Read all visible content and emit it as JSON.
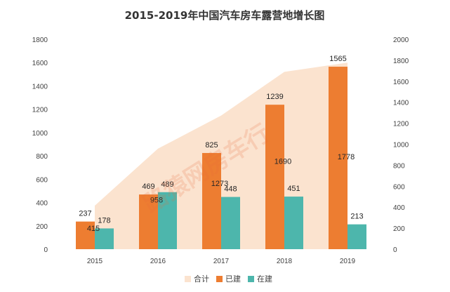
{
  "chart_data": {
    "type": "bar",
    "title": "2015-2019年中国汽车房车露营地增长图",
    "categories": [
      "2015",
      "2016",
      "2017",
      "2018",
      "2019"
    ],
    "series": [
      {
        "name": "合计",
        "kind": "area",
        "axis": "right",
        "values": [
          415,
          958,
          1273,
          1690,
          1778
        ],
        "color": "#fbe3cf"
      },
      {
        "name": "已建",
        "kind": "bar",
        "axis": "left",
        "values": [
          237,
          469,
          825,
          1239,
          1565
        ],
        "color": "#ed7d31"
      },
      {
        "name": "在建",
        "kind": "bar",
        "axis": "left",
        "values": [
          178,
          489,
          448,
          451,
          213
        ],
        "color": "#4db6ac"
      }
    ],
    "y_left": {
      "ticks": [
        0,
        200,
        400,
        600,
        800,
        1000,
        1200,
        1400,
        1600,
        1800
      ],
      "range": [
        0,
        1800
      ]
    },
    "y_right": {
      "ticks": [
        0,
        200,
        400,
        600,
        800,
        1000,
        1200,
        1400,
        1600,
        1800,
        2000
      ],
      "range": [
        0,
        2000
      ]
    },
    "legend": {
      "position": "bottom",
      "entries": [
        "合计",
        "已建",
        "在建"
      ]
    },
    "grid": false
  },
  "watermark": "路猿网房车行"
}
